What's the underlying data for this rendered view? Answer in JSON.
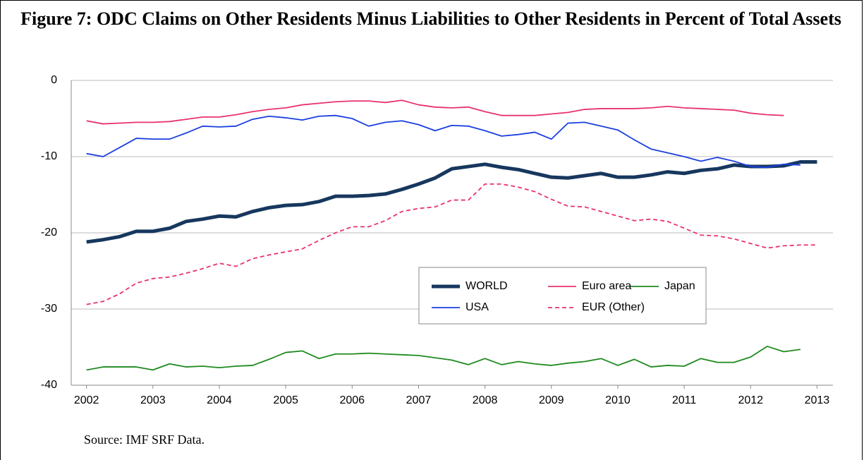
{
  "chart_data": {
    "type": "line",
    "title": "Figure 7: ODC Claims on Other Residents Minus Liabilities to Other Residents in Percent of Total Assets",
    "source": "Source: IMF SRF Data.",
    "x": [
      2002,
      2002.25,
      2002.5,
      2002.75,
      2003,
      2003.25,
      2003.5,
      2003.75,
      2004,
      2004.25,
      2004.5,
      2004.75,
      2005,
      2005.25,
      2005.5,
      2005.75,
      2006,
      2006.25,
      2006.5,
      2006.75,
      2007,
      2007.25,
      2007.5,
      2007.75,
      2008,
      2008.25,
      2008.5,
      2008.75,
      2009,
      2009.25,
      2009.5,
      2009.75,
      2010,
      2010.25,
      2010.5,
      2010.75,
      2011,
      2011.25,
      2011.5,
      2011.75,
      2012,
      2012.25,
      2012.5,
      2012.75,
      2013
    ],
    "xlim": [
      2001.77,
      2013.24
    ],
    "xticks": [
      2002,
      2003,
      2004,
      2005,
      2006,
      2007,
      2008,
      2009,
      2010,
      2011,
      2012,
      2013
    ],
    "ylim": [
      -40,
      0
    ],
    "yticks": [
      -40,
      -30,
      -20,
      -10,
      0
    ],
    "grid": true,
    "series": [
      {
        "name": "WORLD",
        "color": "#17375e",
        "values": [
          -21.2,
          -20.9,
          -20.5,
          -19.8,
          -19.8,
          -19.4,
          -18.5,
          -18.2,
          -17.8,
          -17.9,
          -17.2,
          -16.7,
          -16.4,
          -16.3,
          -15.9,
          -15.2,
          -15.2,
          -15.1,
          -14.9,
          -14.3,
          -13.6,
          -12.8,
          -11.6,
          -11.3,
          -11.0,
          -11.4,
          -11.7,
          -12.2,
          -12.7,
          -12.8,
          -12.5,
          -12.2,
          -12.7,
          -12.7,
          -12.4,
          -12.0,
          -12.2,
          -11.8,
          -11.6,
          -11.1,
          -11.3,
          -11.3,
          -11.2,
          -10.7,
          -10.7
        ]
      },
      {
        "name": "Euro area",
        "color": "#e8336d",
        "values": [
          -5.3,
          -5.7,
          -5.6,
          -5.5,
          -5.5,
          -5.4,
          -5.1,
          -4.8,
          -4.8,
          -4.5,
          -4.1,
          -3.8,
          -3.6,
          -3.2,
          -3.0,
          -2.8,
          -2.7,
          -2.7,
          -2.9,
          -2.6,
          -3.2,
          -3.5,
          -3.6,
          -3.5,
          -4.1,
          -4.6,
          -4.6,
          -4.6,
          -4.4,
          -4.2,
          -3.8,
          -3.7,
          -3.7,
          -3.7,
          -3.6,
          -3.4,
          -3.6,
          -3.7,
          -3.8,
          -3.9,
          -4.3,
          -4.5,
          -4.6,
          null,
          null
        ]
      },
      {
        "name": "Japan",
        "color": "#1f8a1f",
        "values": [
          -38.0,
          -37.6,
          -37.6,
          -37.6,
          -38.0,
          -37.2,
          -37.6,
          -37.5,
          -37.7,
          -37.5,
          -37.4,
          -36.6,
          -35.7,
          -35.5,
          -36.5,
          -35.9,
          -35.9,
          -35.8,
          -35.9,
          -36.0,
          -36.1,
          -36.4,
          -36.7,
          -37.3,
          -36.5,
          -37.3,
          -36.9,
          -37.2,
          -37.4,
          -37.1,
          -36.9,
          -36.5,
          -37.4,
          -36.6,
          -37.6,
          -37.4,
          -37.5,
          -36.5,
          -37.0,
          -37.0,
          -36.3,
          -34.9,
          -35.6,
          -35.3,
          null
        ]
      },
      {
        "name": "USA",
        "color": "#1a3fe0",
        "values": [
          -9.6,
          -10.0,
          -8.8,
          -7.6,
          -7.7,
          -7.7,
          -6.9,
          -6.0,
          -6.1,
          -6.0,
          -5.1,
          -4.7,
          -4.9,
          -5.2,
          -4.7,
          -4.6,
          -5.0,
          -6.0,
          -5.5,
          -5.3,
          -5.8,
          -6.6,
          -5.9,
          -6.0,
          -6.6,
          -7.3,
          -7.1,
          -6.8,
          -7.7,
          -5.6,
          -5.5,
          -6.0,
          -6.5,
          -7.8,
          -9.0,
          -9.5,
          -10.0,
          -10.6,
          -10.1,
          -10.6,
          -11.3,
          -11.4,
          -11.0,
          -11.1,
          null
        ]
      },
      {
        "name": "EUR (Other)",
        "color": "#e8336d",
        "linestyle": "dashed",
        "values": [
          -29.4,
          -29.0,
          -28.0,
          -26.6,
          -26.0,
          -25.8,
          -25.3,
          -24.7,
          -24.0,
          -24.4,
          -23.4,
          -22.9,
          -22.5,
          -22.1,
          -21.0,
          -20.0,
          -19.2,
          -19.2,
          -18.4,
          -17.2,
          -16.8,
          -16.6,
          -15.7,
          -15.7,
          -13.6,
          -13.6,
          -14.0,
          -14.6,
          -15.6,
          -16.5,
          -16.6,
          -17.2,
          -17.8,
          -18.4,
          -18.2,
          -18.5,
          -19.4,
          -20.3,
          -20.4,
          -20.8,
          -21.4,
          -22.0,
          -21.7,
          -21.6,
          -21.6
        ]
      }
    ]
  }
}
